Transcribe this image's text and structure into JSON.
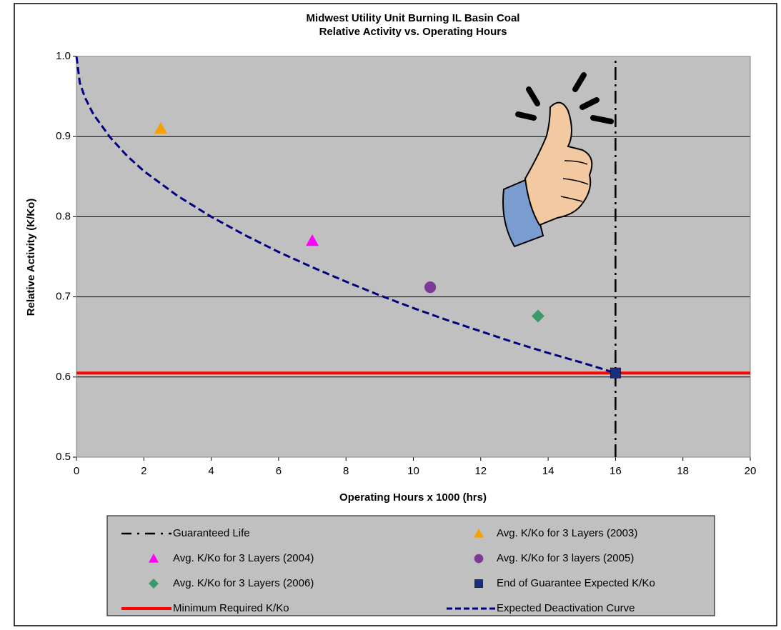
{
  "chart_data": {
    "type": "scatter",
    "title": "Midwest Utility Unit Burning IL Basin Coal",
    "subtitle": "Relative Activity vs. Operating Hours",
    "x_label": "Operating Hours x 1000 (hrs)",
    "y_label": "Relative Activity (K/Ko)",
    "xlim": [
      0,
      20
    ],
    "xticks": [
      0,
      2,
      4,
      6,
      8,
      10,
      12,
      14,
      16,
      18,
      20
    ],
    "ylim": [
      0.5,
      1.0
    ],
    "yticks": [
      0.5,
      0.6,
      0.7,
      0.8,
      0.9,
      {
        "value": 1.0,
        "label": "1.0"
      }
    ],
    "grid": "y",
    "plot_background": "#c0c0c0",
    "legend": "bottom",
    "series": [
      {
        "name": "Guaranteed Life",
        "color": "#000000",
        "style": "dashdot",
        "x": [
          16,
          16
        ],
        "values": [
          0.5,
          1.0
        ]
      },
      {
        "name": "Avg. K/Ko for 3 Layers (2003)",
        "color": "#f7a000",
        "style": "marker",
        "marker": "triangle",
        "x": [
          2.5
        ],
        "values": [
          0.91
        ]
      },
      {
        "name": "Avg. K/Ko for 3 Layers (2004)",
        "color": "#ff00ff",
        "style": "marker",
        "marker": "triangle",
        "x": [
          7.0
        ],
        "values": [
          0.77
        ]
      },
      {
        "name": "Avg. K/Ko for 3 layers (2005)",
        "color": "#7b3a9a",
        "style": "marker",
        "marker": "circle",
        "x": [
          10.5
        ],
        "values": [
          0.712
        ]
      },
      {
        "name": "Avg. K/Ko for 3 Layers (2006)",
        "color": "#3c9a6a",
        "style": "marker",
        "marker": "diamond",
        "x": [
          13.7
        ],
        "values": [
          0.676
        ]
      },
      {
        "name": "End of Guarantee Expected K/Ko",
        "color": "#1a2e80",
        "style": "marker",
        "marker": "square",
        "x": [
          16
        ],
        "values": [
          0.605
        ]
      },
      {
        "name": "Minimum Required K/Ko",
        "color": "#ff0000",
        "style": "solid",
        "x": [
          0,
          20
        ],
        "values": [
          0.605,
          0.605
        ]
      },
      {
        "name": "Expected Deactivation Curve",
        "color": "#000080",
        "style": "dashed",
        "x": [
          0,
          0.1,
          0.25,
          0.5,
          1,
          1.5,
          2,
          3,
          4,
          5,
          6,
          7,
          8,
          9,
          10,
          11,
          12,
          13,
          14,
          15,
          16
        ],
        "values": [
          1.0,
          0.967,
          0.949,
          0.928,
          0.899,
          0.876,
          0.857,
          0.826,
          0.8,
          0.777,
          0.756,
          0.737,
          0.719,
          0.702,
          0.686,
          0.671,
          0.657,
          0.643,
          0.63,
          0.618,
          0.605
        ]
      }
    ]
  }
}
